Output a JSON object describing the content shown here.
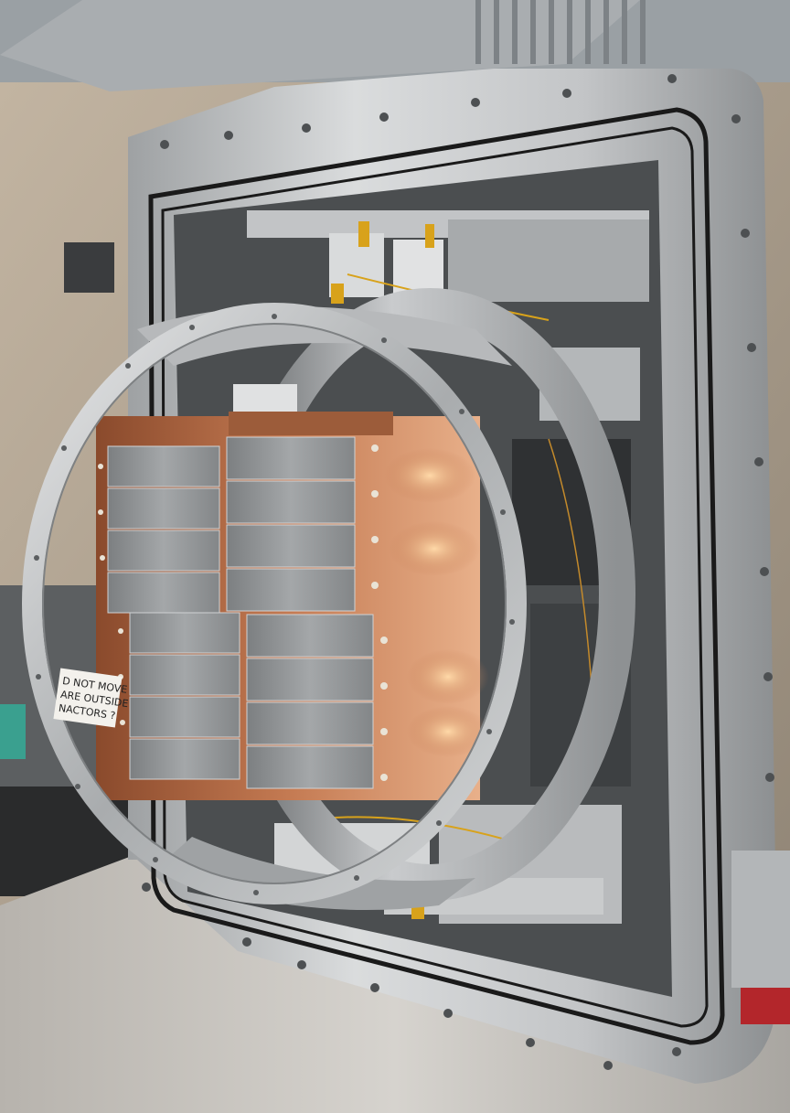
{
  "scene": {
    "subject": "vacuum-chamber-with-detector-modules",
    "note_lines": [
      "D NOT MOVE",
      "ARE OUTSIDE",
      "NACTORS ?"
    ],
    "colors": {
      "steel_light": "#d9dadb",
      "steel_mid": "#b9bbbd",
      "steel_dark": "#6f7274",
      "copper": "#b06a45",
      "copper_light": "#e2a77d",
      "gasket": "#1a1a1a",
      "wall": "#b8aa98",
      "floor": "#c9c5bf",
      "tape": "#d8a21b"
    }
  }
}
